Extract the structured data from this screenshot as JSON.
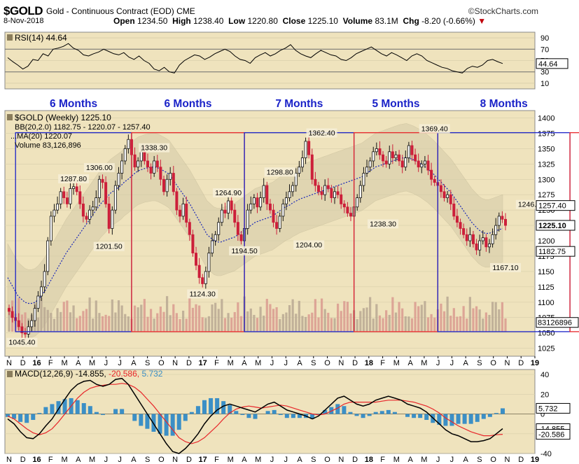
{
  "header": {
    "symbol": "$GOLD",
    "subtitle": "Gold - Continuous Contract (EOD)",
    "exchange": "CME",
    "brand": "©StockCharts.com",
    "date": "8-Nov-2018",
    "open_label": "Open",
    "open": "1234.50",
    "high_label": "High",
    "high": "1238.40",
    "low_label": "Low",
    "low": "1220.80",
    "close_label": "Close",
    "close": "1225.10",
    "volume_label": "Volume",
    "volume": "83.1M",
    "chg_label": "Chg",
    "chg": "-8.20 (-0.66%)",
    "chg_arrow": "▼"
  },
  "colors": {
    "panel_bg": "#efe3bd",
    "up": "#111111",
    "down": "#cc1f3a",
    "box_blue": "#1a22c8",
    "box_red": "#e8262a",
    "ma": "#1a28b8",
    "bb_fill": "#d4cba8",
    "volume": "#b8a893",
    "macd_hist": "#3b8fc6",
    "macd_signal": "#e8262a",
    "macd_line": "#000000",
    "current_price_tag": "#000000"
  },
  "chart_data": [
    {
      "type": "line",
      "panel": "rsi",
      "title": "RSI(14) 44.64",
      "y_ticks": [
        10,
        30,
        50,
        70,
        90
      ],
      "y_tag": "44.64",
      "ylim": [
        0,
        100
      ],
      "series": [
        {
          "name": "RSI(14)",
          "values": [
            55,
            48,
            42,
            35,
            40,
            52,
            50,
            62,
            58,
            70,
            72,
            75,
            80,
            72,
            68,
            60,
            58,
            62,
            65,
            70,
            66,
            62,
            60,
            64,
            56,
            52,
            58,
            50,
            45,
            35,
            32,
            38,
            30,
            28,
            42,
            50,
            55,
            60,
            58,
            52,
            56,
            62,
            66,
            70,
            66,
            58,
            52,
            50,
            45,
            55,
            60,
            64,
            58,
            62,
            68,
            72,
            78,
            68,
            62,
            58,
            55,
            62,
            68,
            64,
            60,
            58,
            52,
            50,
            55,
            62,
            66,
            70,
            74,
            68,
            62,
            58,
            64,
            60,
            55,
            50,
            58,
            62,
            58,
            50,
            46,
            42,
            38,
            36,
            32,
            30,
            28,
            36,
            40,
            38,
            42,
            50,
            52,
            48,
            44.64
          ]
        }
      ]
    },
    {
      "type": "candlestick",
      "panel": "price",
      "title": "$GOLD (Weekly) 1225.10",
      "legend": [
        "BB(20,2.0) 1182.75 - 1220.07 - 1257.40",
        "MA(20) 1220.07",
        "Volume 83,126,896"
      ],
      "ylim": [
        1012,
        1412
      ],
      "y_ticks": [
        1025,
        1050,
        1075,
        1100,
        1125,
        1150,
        1175,
        1200,
        1225,
        1250,
        1275,
        1300,
        1325,
        1350,
        1375,
        1400
      ],
      "y_tags": [
        "1257.40",
        "1225.10",
        "1182.75",
        "83126896"
      ],
      "x_labels": [
        "N",
        "D",
        "16",
        "F",
        "M",
        "A",
        "M",
        "J",
        "J",
        "A",
        "S",
        "O",
        "N",
        "D",
        "17",
        "F",
        "M",
        "A",
        "M",
        "J",
        "J",
        "A",
        "S",
        "O",
        "N",
        "D",
        "18",
        "F",
        "M",
        "A",
        "M",
        "J",
        "J",
        "A",
        "S",
        "O",
        "N",
        "D",
        "19"
      ],
      "closes": [
        1085,
        1075,
        1070,
        1060,
        1050,
        1048,
        1060,
        1070,
        1090,
        1110,
        1125,
        1150,
        1200,
        1240,
        1250,
        1260,
        1280,
        1270,
        1260,
        1285,
        1288,
        1280,
        1260,
        1240,
        1235,
        1250,
        1255,
        1270,
        1300,
        1295,
        1260,
        1220,
        1250,
        1290,
        1310,
        1330,
        1350,
        1365,
        1340,
        1320,
        1330,
        1345,
        1330,
        1320,
        1310,
        1330,
        1320,
        1300,
        1280,
        1300,
        1310,
        1280,
        1250,
        1240,
        1260,
        1230,
        1210,
        1180,
        1160,
        1140,
        1130,
        1150,
        1180,
        1200,
        1210,
        1230,
        1250,
        1245,
        1265,
        1250,
        1230,
        1210,
        1200,
        1220,
        1250,
        1260,
        1270,
        1255,
        1270,
        1290,
        1260,
        1250,
        1230,
        1220,
        1240,
        1260,
        1270,
        1280,
        1290,
        1310,
        1320,
        1335,
        1362,
        1340,
        1300,
        1290,
        1280,
        1275,
        1290,
        1285,
        1270,
        1280,
        1275,
        1260,
        1255,
        1245,
        1240,
        1255,
        1270,
        1290,
        1310,
        1320,
        1330,
        1345,
        1350,
        1340,
        1330,
        1325,
        1345,
        1335,
        1340,
        1330,
        1320,
        1335,
        1355,
        1340,
        1330,
        1320,
        1325,
        1330,
        1315,
        1300,
        1295,
        1290,
        1280,
        1270,
        1275,
        1260,
        1240,
        1230,
        1220,
        1210,
        1200,
        1210,
        1195,
        1185,
        1200,
        1205,
        1190,
        1195,
        1210,
        1225,
        1240,
        1235,
        1225
      ],
      "ma20": [
        1140,
        1130,
        1120,
        1110,
        1105,
        1100,
        1098,
        1098,
        1100,
        1105,
        1112,
        1120,
        1130,
        1140,
        1150,
        1160,
        1170,
        1180,
        1188,
        1196,
        1204,
        1212,
        1220,
        1228,
        1236,
        1244,
        1252,
        1260,
        1266,
        1272,
        1278,
        1282,
        1286,
        1290,
        1296,
        1300,
        1305,
        1310,
        1314,
        1316,
        1318,
        1319,
        1320,
        1320,
        1318,
        1315,
        1312,
        1308,
        1300,
        1292,
        1284,
        1276,
        1268,
        1260,
        1250,
        1240,
        1230,
        1220,
        1210,
        1205,
        1200,
        1198,
        1198,
        1200,
        1202,
        1204,
        1206,
        1210,
        1214,
        1218,
        1222,
        1226,
        1230,
        1232,
        1234,
        1236,
        1238,
        1240,
        1244,
        1248,
        1252,
        1256,
        1258,
        1262,
        1265,
        1268,
        1270,
        1272,
        1274,
        1276,
        1278,
        1280,
        1282,
        1284,
        1286,
        1288,
        1290,
        1292,
        1294,
        1296,
        1298,
        1300,
        1302,
        1304,
        1308,
        1312,
        1316,
        1320,
        1322,
        1324,
        1326,
        1328,
        1330,
        1332,
        1334,
        1335,
        1336,
        1334,
        1332,
        1329,
        1326,
        1322,
        1318,
        1313,
        1308,
        1302,
        1296,
        1290,
        1284,
        1278,
        1270,
        1262,
        1254,
        1246,
        1238,
        1230,
        1224,
        1218,
        1214,
        1212,
        1212,
        1214,
        1216,
        1218,
        1220.07
      ],
      "annotations": [
        {
          "label": "1045.40",
          "i": 4,
          "y": 1045.4,
          "pos": "below"
        },
        {
          "label": "1287.80",
          "i": 20,
          "y": 1287.8,
          "pos": "above"
        },
        {
          "label": "1306.00",
          "i": 28,
          "y": 1306.0,
          "pos": "above"
        },
        {
          "label": "1201.50",
          "i": 31,
          "y": 1201.5,
          "pos": "below"
        },
        {
          "label": "1338.30",
          "i": 45,
          "y": 1338.3,
          "pos": "above"
        },
        {
          "label": "1124.30",
          "i": 60,
          "y": 1124.3,
          "pos": "below"
        },
        {
          "label": "1264.90",
          "i": 68,
          "y": 1264.9,
          "pos": "above"
        },
        {
          "label": "1194.50",
          "i": 73,
          "y": 1194.5,
          "pos": "below"
        },
        {
          "label": "1298.80",
          "i": 84,
          "y": 1298.8,
          "pos": "above"
        },
        {
          "label": "1204.00",
          "i": 93,
          "y": 1204.0,
          "pos": "below"
        },
        {
          "label": "1362.40",
          "i": 97,
          "y": 1362.4,
          "pos": "above"
        },
        {
          "label": "1238.30",
          "i": 116,
          "y": 1238.3,
          "pos": "below"
        },
        {
          "label": "1369.40",
          "i": 132,
          "y": 1369.4,
          "pos": "above"
        },
        {
          "label": "1167.10",
          "i": 154,
          "y": 1167.1,
          "pos": "below"
        },
        {
          "label": "1246.00",
          "i": 162,
          "y": 1246.0,
          "pos": "above"
        }
      ],
      "boxes": [
        {
          "label": "6 Months",
          "color": "blue",
          "x1": 2,
          "x2": 38
        },
        {
          "label": "6 Months",
          "color": "red",
          "x1": 38,
          "x2": 73
        },
        {
          "label": "7 Months",
          "color": "blue",
          "x1": 73,
          "x2": 107
        },
        {
          "label": "5 Months",
          "color": "red",
          "x1": 107,
          "x2": 133
        },
        {
          "label": "8 Months",
          "color": "blue",
          "x1": 133,
          "x2": 174
        },
        {
          "label": "",
          "color": "red",
          "x1": 174,
          "x2": 194
        }
      ]
    },
    {
      "type": "line",
      "panel": "macd",
      "title": "MACD(12,26,9) -14.855, -20.586, 5.732",
      "title_parts": [
        "MACD(12,26,9) -14.855,",
        "-20.586,",
        "5.732"
      ],
      "ylim": [
        -40,
        45
      ],
      "y_ticks": [
        -40,
        -20,
        0,
        20,
        40
      ],
      "y_tags": [
        "5.732",
        "-14.855",
        "-20.586"
      ],
      "series": [
        {
          "name": "MACD",
          "values": [
            -5,
            -10,
            -18,
            -24,
            -25,
            -20,
            -12,
            -5,
            5,
            15,
            24,
            30,
            33,
            34,
            30,
            28,
            30,
            35,
            36,
            30,
            20,
            10,
            0,
            -10,
            -20,
            -30,
            -38,
            -40,
            -35,
            -28,
            -20,
            -10,
            -2,
            4,
            8,
            10,
            8,
            6,
            4,
            2,
            6,
            10,
            12,
            8,
            4,
            2,
            0,
            -2,
            -5,
            -2,
            4,
            10,
            16,
            18,
            14,
            10,
            8,
            10,
            14,
            16,
            18,
            16,
            14,
            10,
            8,
            6,
            2,
            -4,
            -10,
            -16,
            -20,
            -22,
            -25,
            -28,
            -28,
            -27,
            -25,
            -20,
            -14.855
          ]
        },
        {
          "name": "Signal",
          "values": [
            -2,
            -5,
            -10,
            -15,
            -19,
            -21,
            -19,
            -15,
            -8,
            0,
            8,
            16,
            22,
            26,
            28,
            29,
            30,
            30,
            31,
            30,
            27,
            22,
            15,
            8,
            0,
            -8,
            -16,
            -24,
            -28,
            -30,
            -28,
            -24,
            -18,
            -12,
            -5,
            1,
            5,
            7,
            8,
            7,
            6,
            7,
            8,
            9,
            8,
            6,
            4,
            2,
            0,
            -1,
            0,
            3,
            6,
            10,
            12,
            12,
            12,
            12,
            12,
            13,
            14,
            14,
            14,
            13,
            12,
            10,
            8,
            5,
            1,
            -4,
            -8,
            -12,
            -15,
            -18,
            -20,
            -22,
            -22,
            -21,
            -20.586
          ]
        }
      ]
    }
  ],
  "bottom_axis_labels": [
    "N",
    "D",
    "16",
    "F",
    "M",
    "A",
    "M",
    "J",
    "J",
    "A",
    "S",
    "O",
    "N",
    "D",
    "17",
    "F",
    "M",
    "A",
    "M",
    "J",
    "J",
    "A",
    "S",
    "O",
    "N",
    "D",
    "18",
    "F",
    "M",
    "A",
    "M",
    "J",
    "J",
    "A",
    "S",
    "O",
    "N",
    "D",
    "19"
  ]
}
